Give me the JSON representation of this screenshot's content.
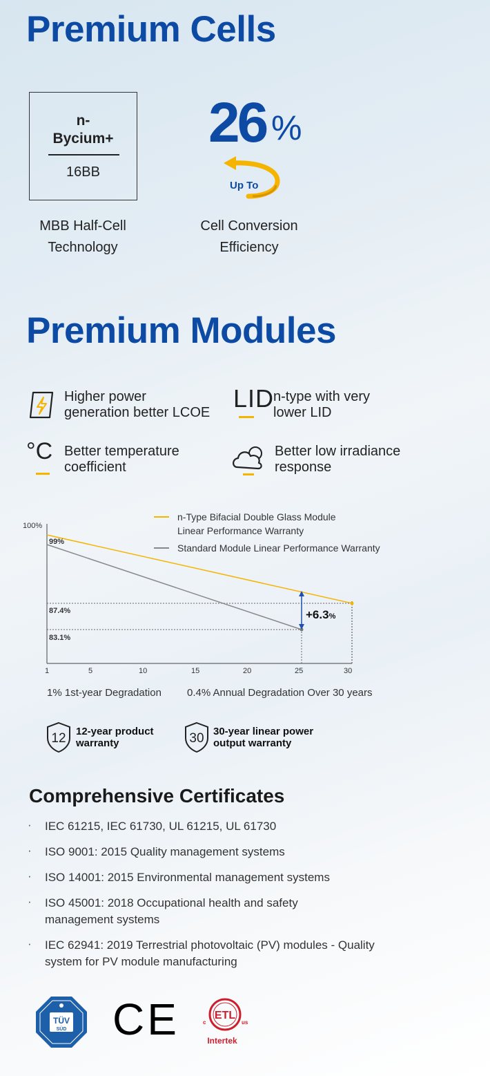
{
  "cells": {
    "title": "Premium Cells",
    "box_line1": "n-",
    "box_line2": "Bycium+",
    "box_line3": "16BB",
    "caption_left_1": "MBB Half-Cell",
    "caption_left_2": "Technology",
    "efficiency_value": "26",
    "efficiency_unit": "%",
    "efficiency_prefix": "Up To",
    "caption_right_1": "Cell  Conversion",
    "caption_right_2": "Efficiency"
  },
  "modules": {
    "title": "Premium Modules",
    "features": [
      {
        "icon": "lightning-icon",
        "line1": "Higher power",
        "line2": "generation better LCOE"
      },
      {
        "icon": "lid-icon",
        "line1": "n-type with very",
        "line2": "lower LID"
      },
      {
        "icon": "celsius-icon",
        "line1": "Better temperature",
        "line2": "coefficient"
      },
      {
        "icon": "cloud-sun-icon",
        "line1": "Better low irradiance",
        "line2": "response"
      }
    ],
    "lid_icon_text": "LID",
    "celsius_icon_text": "°C"
  },
  "chart_data": {
    "type": "line",
    "x": [
      1,
      30
    ],
    "series": [
      {
        "name": "n-Type Bifacial Double Glass Module Linear Performance Warranty",
        "color": "#f5b400",
        "points": [
          [
            1,
            99
          ],
          [
            30,
            87.4
          ]
        ]
      },
      {
        "name": "Standard Module Linear Performance Warranty",
        "color": "#888888",
        "points": [
          [
            1,
            97.5
          ],
          [
            25,
            83.1
          ]
        ]
      }
    ],
    "xticks": [
      "1",
      "5",
      "10",
      "15",
      "20",
      "25",
      "30"
    ],
    "ytick_top": "100%",
    "labels": {
      "first": "99%",
      "mid": "87.4%",
      "low": "83.1%"
    },
    "difference": "+6.3",
    "difference_unit": "%",
    "legend_1_line1": "n-Type Bifacial Double Glass Module",
    "legend_1_line2": "Linear Performance Warranty",
    "legend_2": "Standard Module Linear Performance Warranty",
    "note_left": "1% 1st-year Degradation",
    "note_right": "0.4% Annual Degradation Over 30 years"
  },
  "warranty": [
    {
      "number": "12",
      "line1": "12-year product",
      "line2": "warranty"
    },
    {
      "number": "30",
      "line1": "30-year linear power",
      "line2": "output warranty"
    }
  ],
  "certificates": {
    "title": "Comprehensive Certificates",
    "items": [
      {
        "line1": "IEC 61215, IEC 61730, UL 61215, UL 61730",
        "line2": ""
      },
      {
        "line1": "ISO 9001: 2015 Quality management systems",
        "line2": ""
      },
      {
        "line1": "ISO 14001: 2015 Environmental management systems",
        "line2": ""
      },
      {
        "line1": "ISO 45001: 2018 Occupational health and safety",
        "line2": "management systems"
      },
      {
        "line1": "IEC 62941: 2019 Terrestrial photovoltaic (PV) modules - Quality",
        "line2": "system for PV module manufacturing"
      }
    ],
    "bullet": "·"
  },
  "logos": {
    "tuv_text": "TÜV",
    "tuv_sub": "SÜD",
    "ce_text": "CE",
    "etl_text": "ETL",
    "etl_c": "c",
    "etl_us": "us",
    "intertek": "Intertek"
  }
}
